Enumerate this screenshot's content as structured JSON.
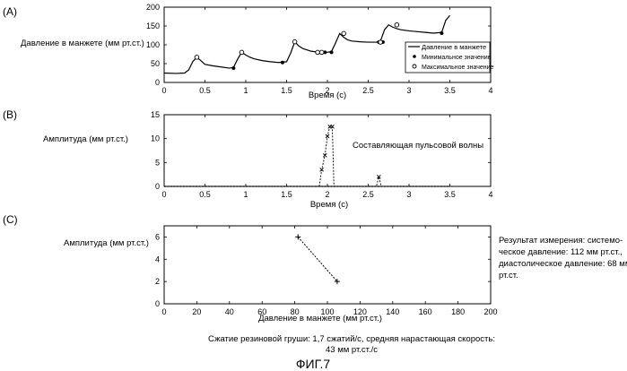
{
  "figure": {
    "caption_line1": "Сжатие резиновой груши: 1,7 сжатий/с, средняя нарастающая скорость:",
    "caption_line2": "43 мм рт.ст./с",
    "fig_label": "ФИГ.7",
    "result_lines": [
      "Результат измерения: системо-",
      "ческое давление: 112 мм рт.ст.,",
      "диастолическое давление: 68 мм",
      "рт.ст."
    ]
  },
  "chart_data": [
    {
      "panel": "(A)",
      "type": "line",
      "xlabel": "Время (с)",
      "ylabel": "Давление в манжете (мм рт.ст.)",
      "xlim": [
        0,
        4
      ],
      "ylim": [
        0,
        200
      ],
      "xticks": [
        "0",
        "0.5",
        "1",
        "1.5",
        "2",
        "2.5",
        "3",
        "3.5",
        "4"
      ],
      "yticks": [
        "0",
        "50",
        "100",
        "150",
        "200"
      ],
      "legend": [
        "Давление в манжете",
        "Минимальное значение",
        "Максимальное значение"
      ],
      "legend_position": "right",
      "series": [
        {
          "name": "Давление в манжете",
          "x": [
            0,
            0.15,
            0.25,
            0.3,
            0.35,
            0.4,
            0.45,
            0.5,
            0.6,
            0.7,
            0.8,
            0.85,
            0.9,
            0.95,
            1.0,
            1.05,
            1.1,
            1.2,
            1.3,
            1.4,
            1.5,
            1.55,
            1.6,
            1.65,
            1.7,
            1.8,
            1.9,
            1.95,
            2.0,
            2.05,
            2.1,
            2.15,
            2.2,
            2.25,
            2.3,
            2.4,
            2.5,
            2.6,
            2.65,
            2.7,
            2.75,
            2.8,
            2.85,
            2.9,
            3.0,
            3.1,
            3.2,
            3.3,
            3.4,
            3.45,
            3.5
          ],
          "y": [
            25,
            24,
            25,
            33,
            55,
            67,
            58,
            48,
            44,
            41,
            38,
            40,
            62,
            80,
            73,
            67,
            63,
            58,
            55,
            53,
            55,
            78,
            108,
            97,
            90,
            83,
            80,
            80,
            80,
            82,
            105,
            130,
            120,
            113,
            110,
            108,
            107,
            107,
            110,
            140,
            153,
            147,
            143,
            140,
            137,
            135,
            133,
            131,
            133,
            165,
            178
          ]
        },
        {
          "name": "Минимальное значение",
          "x": [
            0.85,
            1.45,
            1.97,
            2.05,
            2.63,
            2.68,
            3.4
          ],
          "y": [
            38,
            53,
            80,
            80,
            107,
            107,
            131
          ]
        },
        {
          "name": "Максимальное значение",
          "x": [
            0.4,
            0.95,
            1.6,
            1.88,
            1.93,
            2.2,
            2.65,
            2.85
          ],
          "y": [
            67,
            80,
            108,
            80,
            80,
            130,
            107,
            153
          ]
        }
      ]
    },
    {
      "panel": "(B)",
      "type": "line",
      "xlabel": "Время (с)",
      "ylabel": "Амплитуда (мм рт.ст.)",
      "xlim": [
        0,
        4
      ],
      "ylim": [
        0,
        15
      ],
      "xticks": [
        "0",
        "0.5",
        "1",
        "1.5",
        "2",
        "2.5",
        "3",
        "3.5",
        "4"
      ],
      "yticks": [
        "0",
        "5",
        "10",
        "15"
      ],
      "annotation": "Составляющая пульсовой волны",
      "series": [
        {
          "name": "Составляющая пульсовой волны",
          "x": [
            1.9,
            1.93,
            1.97,
            2.0,
            2.03,
            2.06,
            2.08,
            2.6,
            2.63,
            2.66
          ],
          "y": [
            0,
            3.5,
            6.5,
            10.5,
            12.5,
            12.5,
            0,
            0,
            2,
            0
          ]
        }
      ]
    },
    {
      "panel": "(C)",
      "type": "line",
      "xlabel": "Давление в манжете (мм рт.ст.)",
      "ylabel": "Амплитуда (мм рт.ст.)",
      "xlim": [
        0,
        200
      ],
      "ylim": [
        0,
        7
      ],
      "xticks": [
        "0",
        "20",
        "40",
        "60",
        "80",
        "100",
        "120",
        "140",
        "160",
        "180",
        "200"
      ],
      "yticks": [
        "0",
        "2",
        "4",
        "6"
      ],
      "series": [
        {
          "name": "Амплитуда",
          "x": [
            82,
            106
          ],
          "y": [
            6,
            2
          ]
        }
      ]
    }
  ]
}
